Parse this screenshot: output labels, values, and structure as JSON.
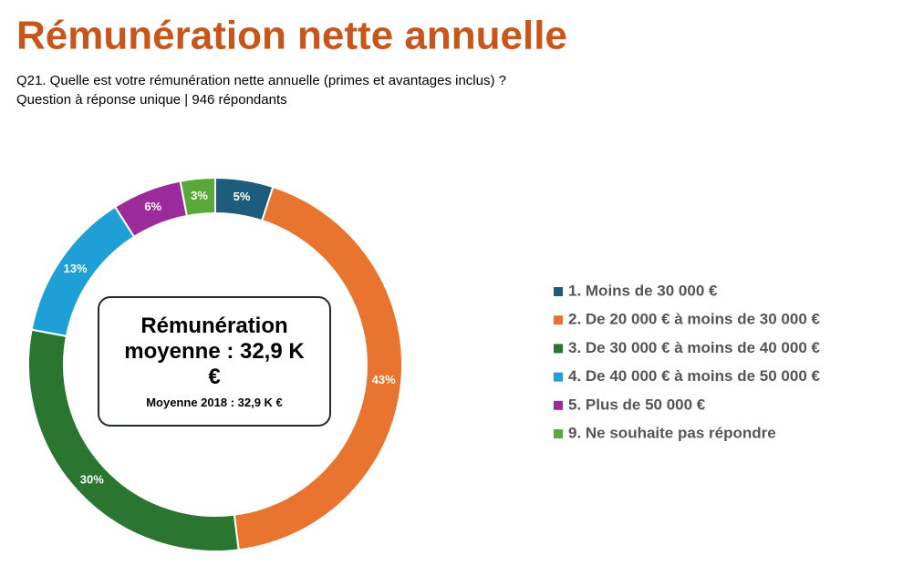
{
  "chart_data": {
    "type": "donut",
    "title": "Rémunération nette annuelle",
    "subtitle": "Q21.  Quelle est votre rémunération nette annuelle (primes et avantages inclus) ?",
    "note": "Question à réponse unique | 946 répondants",
    "categories": [
      "1. Moins de 30 000 €",
      "2. De 20 000 € à moins de 30 000 €",
      "3. De 30 000 € à moins de 40 000 €",
      "4. De 40 000 € à moins de 50 000 €",
      "5. Plus de 50 000 €",
      "9. Ne souhaite pas répondre"
    ],
    "values": [
      5,
      43,
      30,
      13,
      6,
      3
    ],
    "value_labels": [
      "5%",
      "43%",
      "30%",
      "13%",
      "6%",
      "3%"
    ],
    "colors": [
      "#1d5c7c",
      "#e8742f",
      "#2a7530",
      "#1e9fd6",
      "#9b2a9a",
      "#58a83a"
    ],
    "legend": "right",
    "center_text": "Rémunération moyenne : 32,9 K €",
    "center_note": "Moyenne 2018 :  32,9 K €"
  }
}
